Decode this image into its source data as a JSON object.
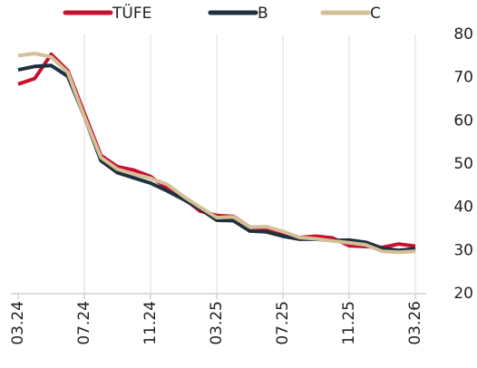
{
  "chart_data": {
    "type": "line",
    "categories": [
      "03.24",
      null,
      null,
      null,
      "07.24",
      null,
      null,
      null,
      "11.24",
      null,
      null,
      null,
      "03.25",
      null,
      null,
      null,
      "07.25",
      null,
      null,
      null,
      "11.25",
      null,
      null,
      null,
      "03.26"
    ],
    "series": [
      {
        "name": "TÜFE",
        "color": "#c8102e",
        "values": [
          68.5,
          69.8,
          75.4,
          71.6,
          61.8,
          52.0,
          49.4,
          48.6,
          47.1,
          44.4,
          42.1,
          39.1,
          38.1,
          37.9,
          35.4,
          35.1,
          33.5,
          33.0,
          33.3,
          32.9,
          31.1,
          30.9,
          30.7,
          31.5,
          31.0
        ]
      },
      {
        "name": "B",
        "color": "#1f3040",
        "values": [
          71.8,
          72.6,
          72.8,
          70.3,
          61.0,
          50.8,
          48.0,
          46.8,
          45.6,
          43.8,
          41.8,
          39.6,
          37.0,
          36.9,
          34.5,
          34.3,
          33.3,
          32.6,
          32.6,
          32.3,
          32.4,
          31.9,
          30.5,
          30.0,
          30.4
        ]
      },
      {
        "name": "C",
        "color": "#d4bf96",
        "values": [
          75.1,
          75.6,
          74.8,
          71.2,
          61.0,
          51.5,
          48.8,
          47.7,
          46.7,
          45.3,
          42.5,
          40.0,
          37.6,
          37.8,
          35.4,
          35.5,
          34.4,
          33.0,
          32.7,
          32.2,
          31.8,
          31.3,
          29.8,
          29.6,
          29.8
        ]
      }
    ],
    "ylim": [
      20,
      80
    ],
    "yticks": [
      20,
      30,
      40,
      50,
      60,
      70,
      80
    ],
    "grid": true
  }
}
